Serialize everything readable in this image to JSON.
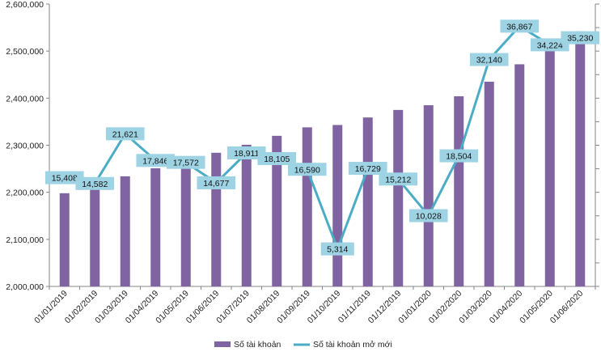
{
  "chart_data": {
    "type": "bar",
    "categories": [
      "01/01/2019",
      "01/02/2019",
      "01/03/2019",
      "01/04/2019",
      "01/05/2019",
      "01/06/2019",
      "01/07/2019",
      "01/08/2019",
      "01/09/2019",
      "01/10/2019",
      "01/11/2019",
      "01/12/2019",
      "01/01/2020",
      "01/02/2020",
      "01/03/2020",
      "01/04/2020",
      "01/05/2020",
      "01/06/2020"
    ],
    "series": [
      {
        "name": "Số tài khoản",
        "type": "bar",
        "axis": "left",
        "color": "#8064a2",
        "values": [
          2198000,
          2211000,
          2234000,
          2251000,
          2270000,
          2284000,
          2301000,
          2320000,
          2338000,
          2343000,
          2359000,
          2375000,
          2385000,
          2404000,
          2435000,
          2472000,
          2507000,
          2542000
        ]
      },
      {
        "name": "Số tài khoản mở mới",
        "type": "line",
        "axis": "right",
        "color": "#4bacc6",
        "values": [
          15408,
          14582,
          21621,
          17846,
          17572,
          14677,
          18911,
          18105,
          16590,
          5314,
          16729,
          15212,
          10028,
          18504,
          32140,
          36867,
          34224,
          35230
        ],
        "labels": [
          "15,408",
          "14,582",
          "21,621",
          "17,846",
          "17,572",
          "14,677",
          "18,911",
          "18,105",
          "16,590",
          "5,314",
          "16,729",
          "15,212",
          "10,028",
          "18,504",
          "32,140",
          "36,867",
          "34,224",
          "35,230"
        ]
      }
    ],
    "y_left": {
      "ylim": [
        2000000,
        2600000
      ],
      "ticks": [
        "2,000,000",
        "2,100,000",
        "2,200,000",
        "2,300,000",
        "2,400,000",
        "2,500,000",
        "2,600,000"
      ]
    },
    "y_right": {
      "ylim": [
        0,
        40000
      ],
      "tick_labels_shown": false
    },
    "grid": false,
    "legend": "bottom"
  }
}
